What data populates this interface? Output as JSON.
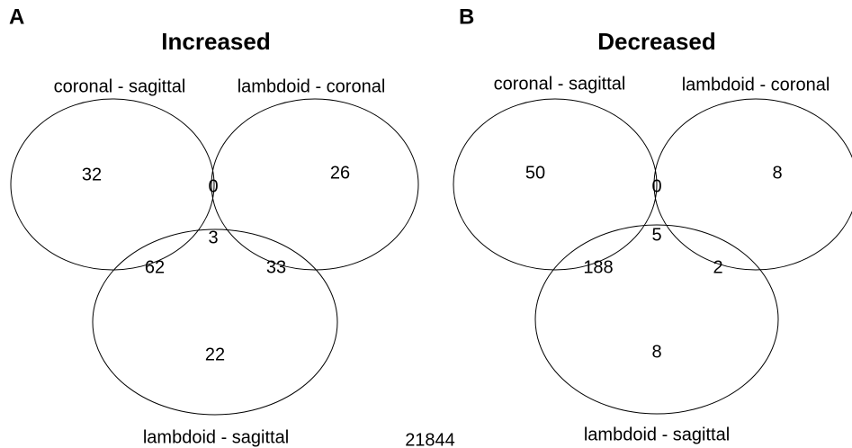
{
  "panels": [
    {
      "label": "A",
      "title": "Increased",
      "sets": [
        "coronal - sagittal",
        "lambdoid - coronal",
        "lambdoid - sagittal"
      ],
      "regions": [
        "32",
        "0",
        "26",
        "3",
        "62",
        "33",
        "22"
      ]
    },
    {
      "label": "B",
      "title": "Decreased",
      "sets": [
        "coronal - sagittal",
        "lambdoid - coronal",
        "lambdoid - sagittal"
      ],
      "regions": [
        "50",
        "0",
        "8",
        "5",
        "188",
        "2",
        "8"
      ]
    }
  ],
  "footer": "21844"
}
